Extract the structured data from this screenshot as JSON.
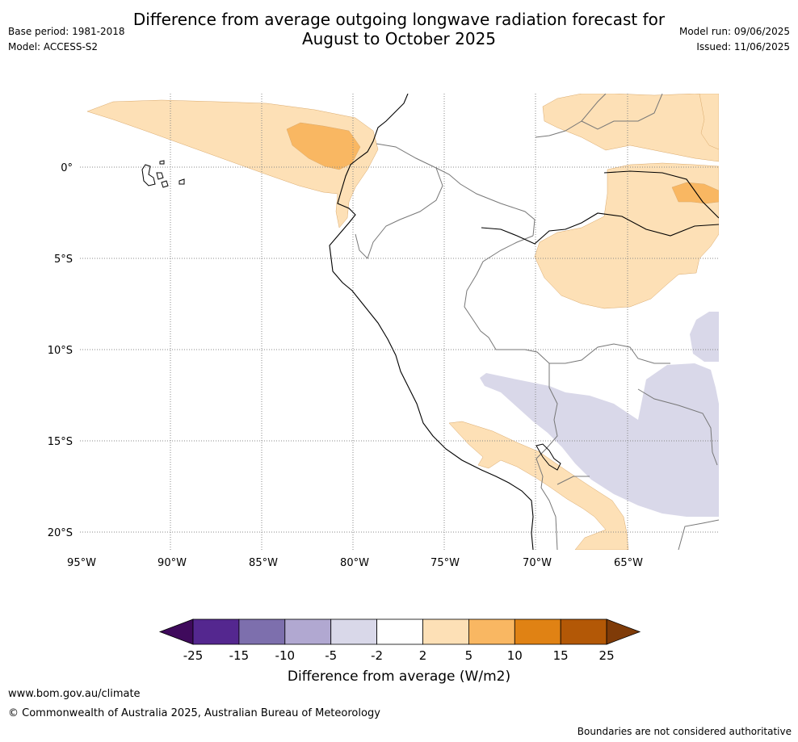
{
  "header": {
    "title_line1": "Difference from average outgoing longwave radiation forecast for",
    "title_line2": "August to October 2025",
    "base_period": "Base period: 1981-2018",
    "model": "Model: ACCESS-S2",
    "model_run": "Model run: 09/06/2025",
    "issued": "Issued: 11/06/2025"
  },
  "map": {
    "lat_labels": [
      "0°",
      "5°S",
      "10°S",
      "15°S",
      "20°S"
    ],
    "lon_labels": [
      "95°W",
      "90°W",
      "85°W",
      "80°W",
      "75°W",
      "70°W",
      "65°W"
    ]
  },
  "colorbar": {
    "title": "Difference from average (W/m2)",
    "ticks": [
      "-25",
      "-15",
      "-10",
      "-5",
      "-2",
      "2",
      "5",
      "10",
      "15",
      "25"
    ],
    "colors": [
      "#3f0a5c",
      "#54278f",
      "#7d6fad",
      "#b1a8d1",
      "#d9d8e9",
      "#ffffff",
      "#fde0b6",
      "#f9b762",
      "#e08214",
      "#b35806",
      "#7f3b08"
    ]
  },
  "footer": {
    "website": "www.bom.gov.au/climate",
    "copyright": "© Commonwealth of Australia 2025, Australian Bureau of Meteorology",
    "disclaimer": "Boundaries are not considered authoritative"
  }
}
